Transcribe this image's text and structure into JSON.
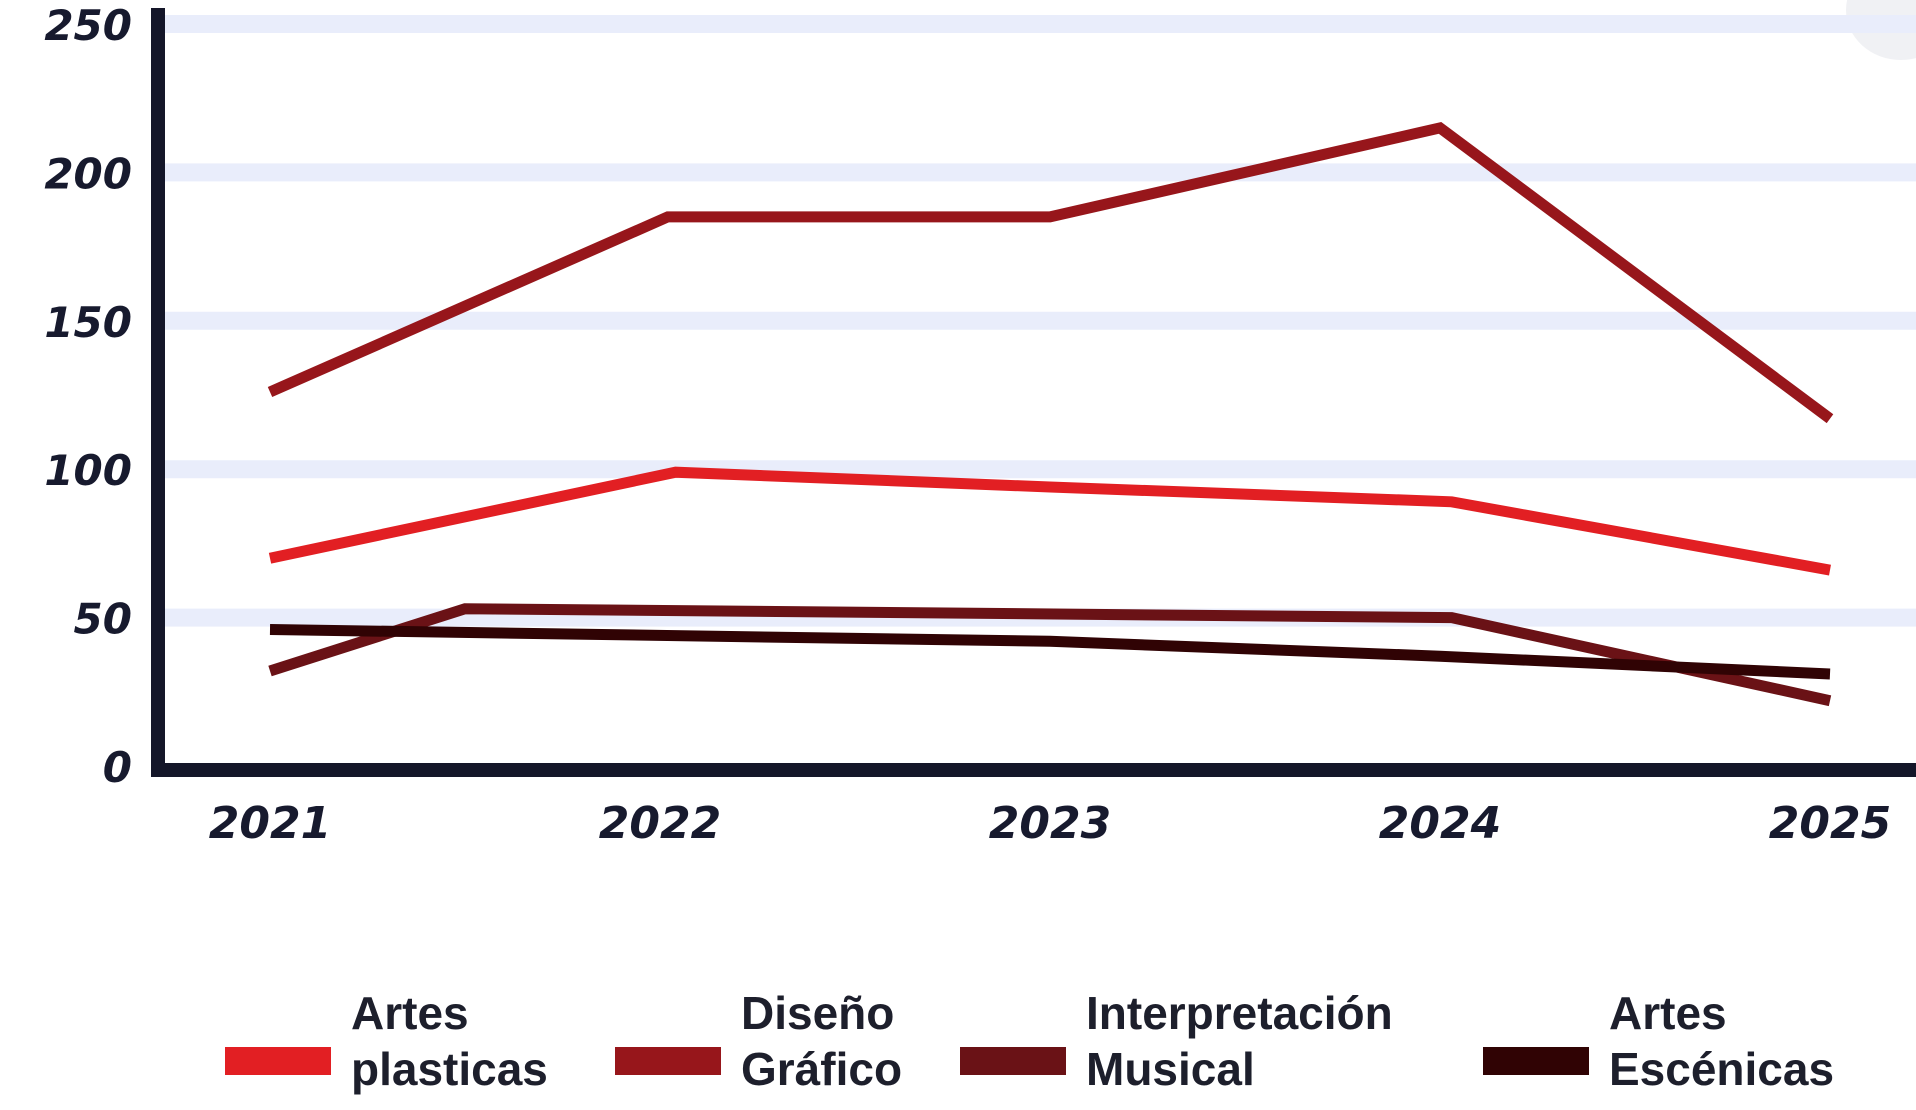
{
  "chart_data": {
    "type": "line",
    "title": "",
    "xlabel": "",
    "ylabel": "",
    "x": [
      "2021",
      "2022",
      "2023",
      "2024",
      "2025"
    ],
    "ylim": [
      0,
      250
    ],
    "yticks": [
      "0",
      "50",
      "100",
      "150",
      "200",
      "250"
    ],
    "grid": true,
    "legend_position": "bottom",
    "series": [
      {
        "name": "Artes plasticas",
        "color": "#e21f23",
        "points": [
          [
            0,
            70
          ],
          [
            1.04,
            99
          ],
          [
            2,
            94
          ],
          [
            3.03,
            89
          ],
          [
            4,
            66
          ]
        ]
      },
      {
        "name": "Diseño Gráfico",
        "color": "#97161b",
        "points": [
          [
            0,
            126
          ],
          [
            1.02,
            185
          ],
          [
            2,
            185
          ],
          [
            3,
            215
          ],
          [
            4,
            117
          ]
        ]
      },
      {
        "name": "Interpretación Musical",
        "color": "#6a1216",
        "points": [
          [
            0,
            32
          ],
          [
            0.5,
            53
          ],
          [
            3.03,
            50
          ],
          [
            4,
            22
          ]
        ]
      },
      {
        "name": "Artes Escénicas",
        "color": "#300304",
        "points": [
          [
            0,
            46
          ],
          [
            2,
            42
          ],
          [
            3,
            37
          ],
          [
            4,
            31
          ]
        ]
      }
    ]
  }
}
